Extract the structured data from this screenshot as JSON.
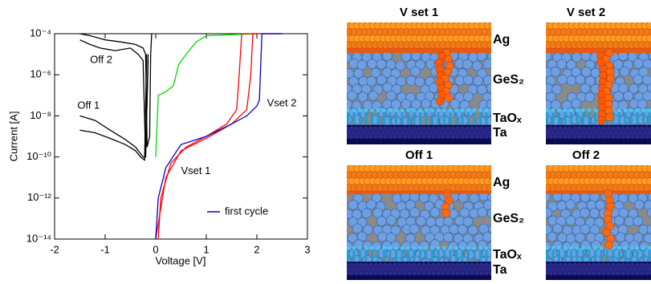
{
  "chart_data": {
    "type": "line",
    "x_label": "Voltage [V]",
    "y_label": "Current [A]",
    "xlim": [
      -2,
      3
    ],
    "xticks": [
      -2,
      -1,
      0,
      1,
      2,
      3
    ],
    "ylim": [
      1e-14,
      0.0001
    ],
    "log_y": true,
    "yticks": [
      {
        "value": 1e-14,
        "label": "10⁻¹⁴"
      },
      {
        "value": 1e-12,
        "label": "10⁻¹²"
      },
      {
        "value": 1e-10,
        "label": "10⁻¹⁰"
      },
      {
        "value": 1e-08,
        "label": "10⁻⁸"
      },
      {
        "value": 1e-06,
        "label": "10⁻⁶"
      },
      {
        "value": 0.0001,
        "label": "10⁻⁴"
      }
    ],
    "legend_corner": "lower right",
    "annotations": [
      {
        "text": "Off 2",
        "x": -1.3,
        "y": 5e-06
      },
      {
        "text": "Off 1",
        "x": -1.55,
        "y": 3e-08
      },
      {
        "text": "Vset 1",
        "x": 0.5,
        "y": 2e-11
      },
      {
        "text": "Vset 2",
        "x": 2.2,
        "y": 4e-08
      }
    ],
    "series": [
      {
        "color": "#000000",
        "x": [
          -1.5,
          -1.3,
          -1.0,
          -0.7,
          -0.4,
          -0.25,
          -0.2,
          -0.17,
          -0.12,
          -0.1,
          -0.08
        ],
        "values": [
          0.0001,
          8e-05,
          5e-05,
          4e-05,
          3e-05,
          2e-05,
          1e-05,
          3e-10,
          1e-09,
          1e-05,
          0.0001
        ]
      },
      {
        "color": "#000000",
        "x": [
          -1.5,
          -1.3,
          -1.1,
          -0.8,
          -0.5,
          -0.35,
          -0.25,
          -0.2,
          -0.15
        ],
        "values": [
          5e-05,
          3e-05,
          2e-05,
          1.5e-05,
          2e-05,
          1e-05,
          5e-06,
          1e-10,
          5e-06
        ]
      },
      {
        "color": "#000000",
        "x": [
          -1.5,
          -1.2,
          -0.9,
          -0.6,
          -0.4,
          -0.25,
          -0.2,
          -0.15
        ],
        "values": [
          1e-08,
          6e-09,
          2e-09,
          7e-10,
          3e-10,
          1e-10,
          1e-10,
          1e-05
        ]
      },
      {
        "color": "#000000",
        "x": [
          -1.5,
          -1.2,
          -0.9,
          -0.6,
          -0.4,
          -0.3,
          -0.22,
          -0.18
        ],
        "values": [
          2e-09,
          1.5e-09,
          8e-10,
          4e-10,
          2e-10,
          1e-10,
          7e-11,
          1e-05
        ]
      },
      {
        "color": "#00dd00",
        "x": [
          0,
          0.05,
          0.2,
          0.35,
          0.45,
          0.6,
          0.8,
          1.0,
          1.5,
          2.0
        ],
        "values": [
          1e-10,
          1e-07,
          1.5e-07,
          3e-07,
          3e-06,
          1e-05,
          4e-05,
          8e-05,
          9e-05,
          0.0001
        ]
      },
      {
        "color": "#ff0000",
        "x": [
          0.05,
          0.1,
          0.3,
          0.6,
          1.0,
          1.4,
          1.6,
          1.65,
          1.7,
          2.5
        ],
        "values": [
          1e-14,
          1e-12,
          5e-11,
          3e-10,
          1e-09,
          4e-09,
          2e-08,
          1e-06,
          0.0001,
          0.0001
        ]
      },
      {
        "color": "#ff0000",
        "x": [
          0,
          0.2,
          0.5,
          1.0,
          1.5,
          1.8,
          1.88,
          1.92,
          2.5
        ],
        "values": [
          1e-14,
          1e-11,
          2e-10,
          8e-10,
          4e-09,
          2e-08,
          1e-06,
          0.0001,
          0.0001
        ]
      },
      {
        "name": "first cycle",
        "color": "#0000cc",
        "x": [
          0,
          0.05,
          0.2,
          0.5,
          1.0,
          1.5,
          1.8,
          2.0,
          2.05,
          2.1,
          2.5
        ],
        "values": [
          1e-14,
          1e-12,
          3e-11,
          4e-10,
          1e-09,
          4e-09,
          1e-08,
          3e-08,
          6e-08,
          0.0001,
          0.0001
        ]
      }
    ]
  },
  "illustration": {
    "panels": [
      {
        "title": "V set 1"
      },
      {
        "title": "V set 2"
      },
      {
        "title": "Off 1"
      },
      {
        "title": "Off 2"
      }
    ],
    "label_columns": [
      [
        "Ag",
        "GeS₂",
        "TaOₓ",
        "Ta"
      ],
      [
        "Ag",
        "GeS₂",
        "TaOₓ",
        "Ta"
      ]
    ]
  }
}
